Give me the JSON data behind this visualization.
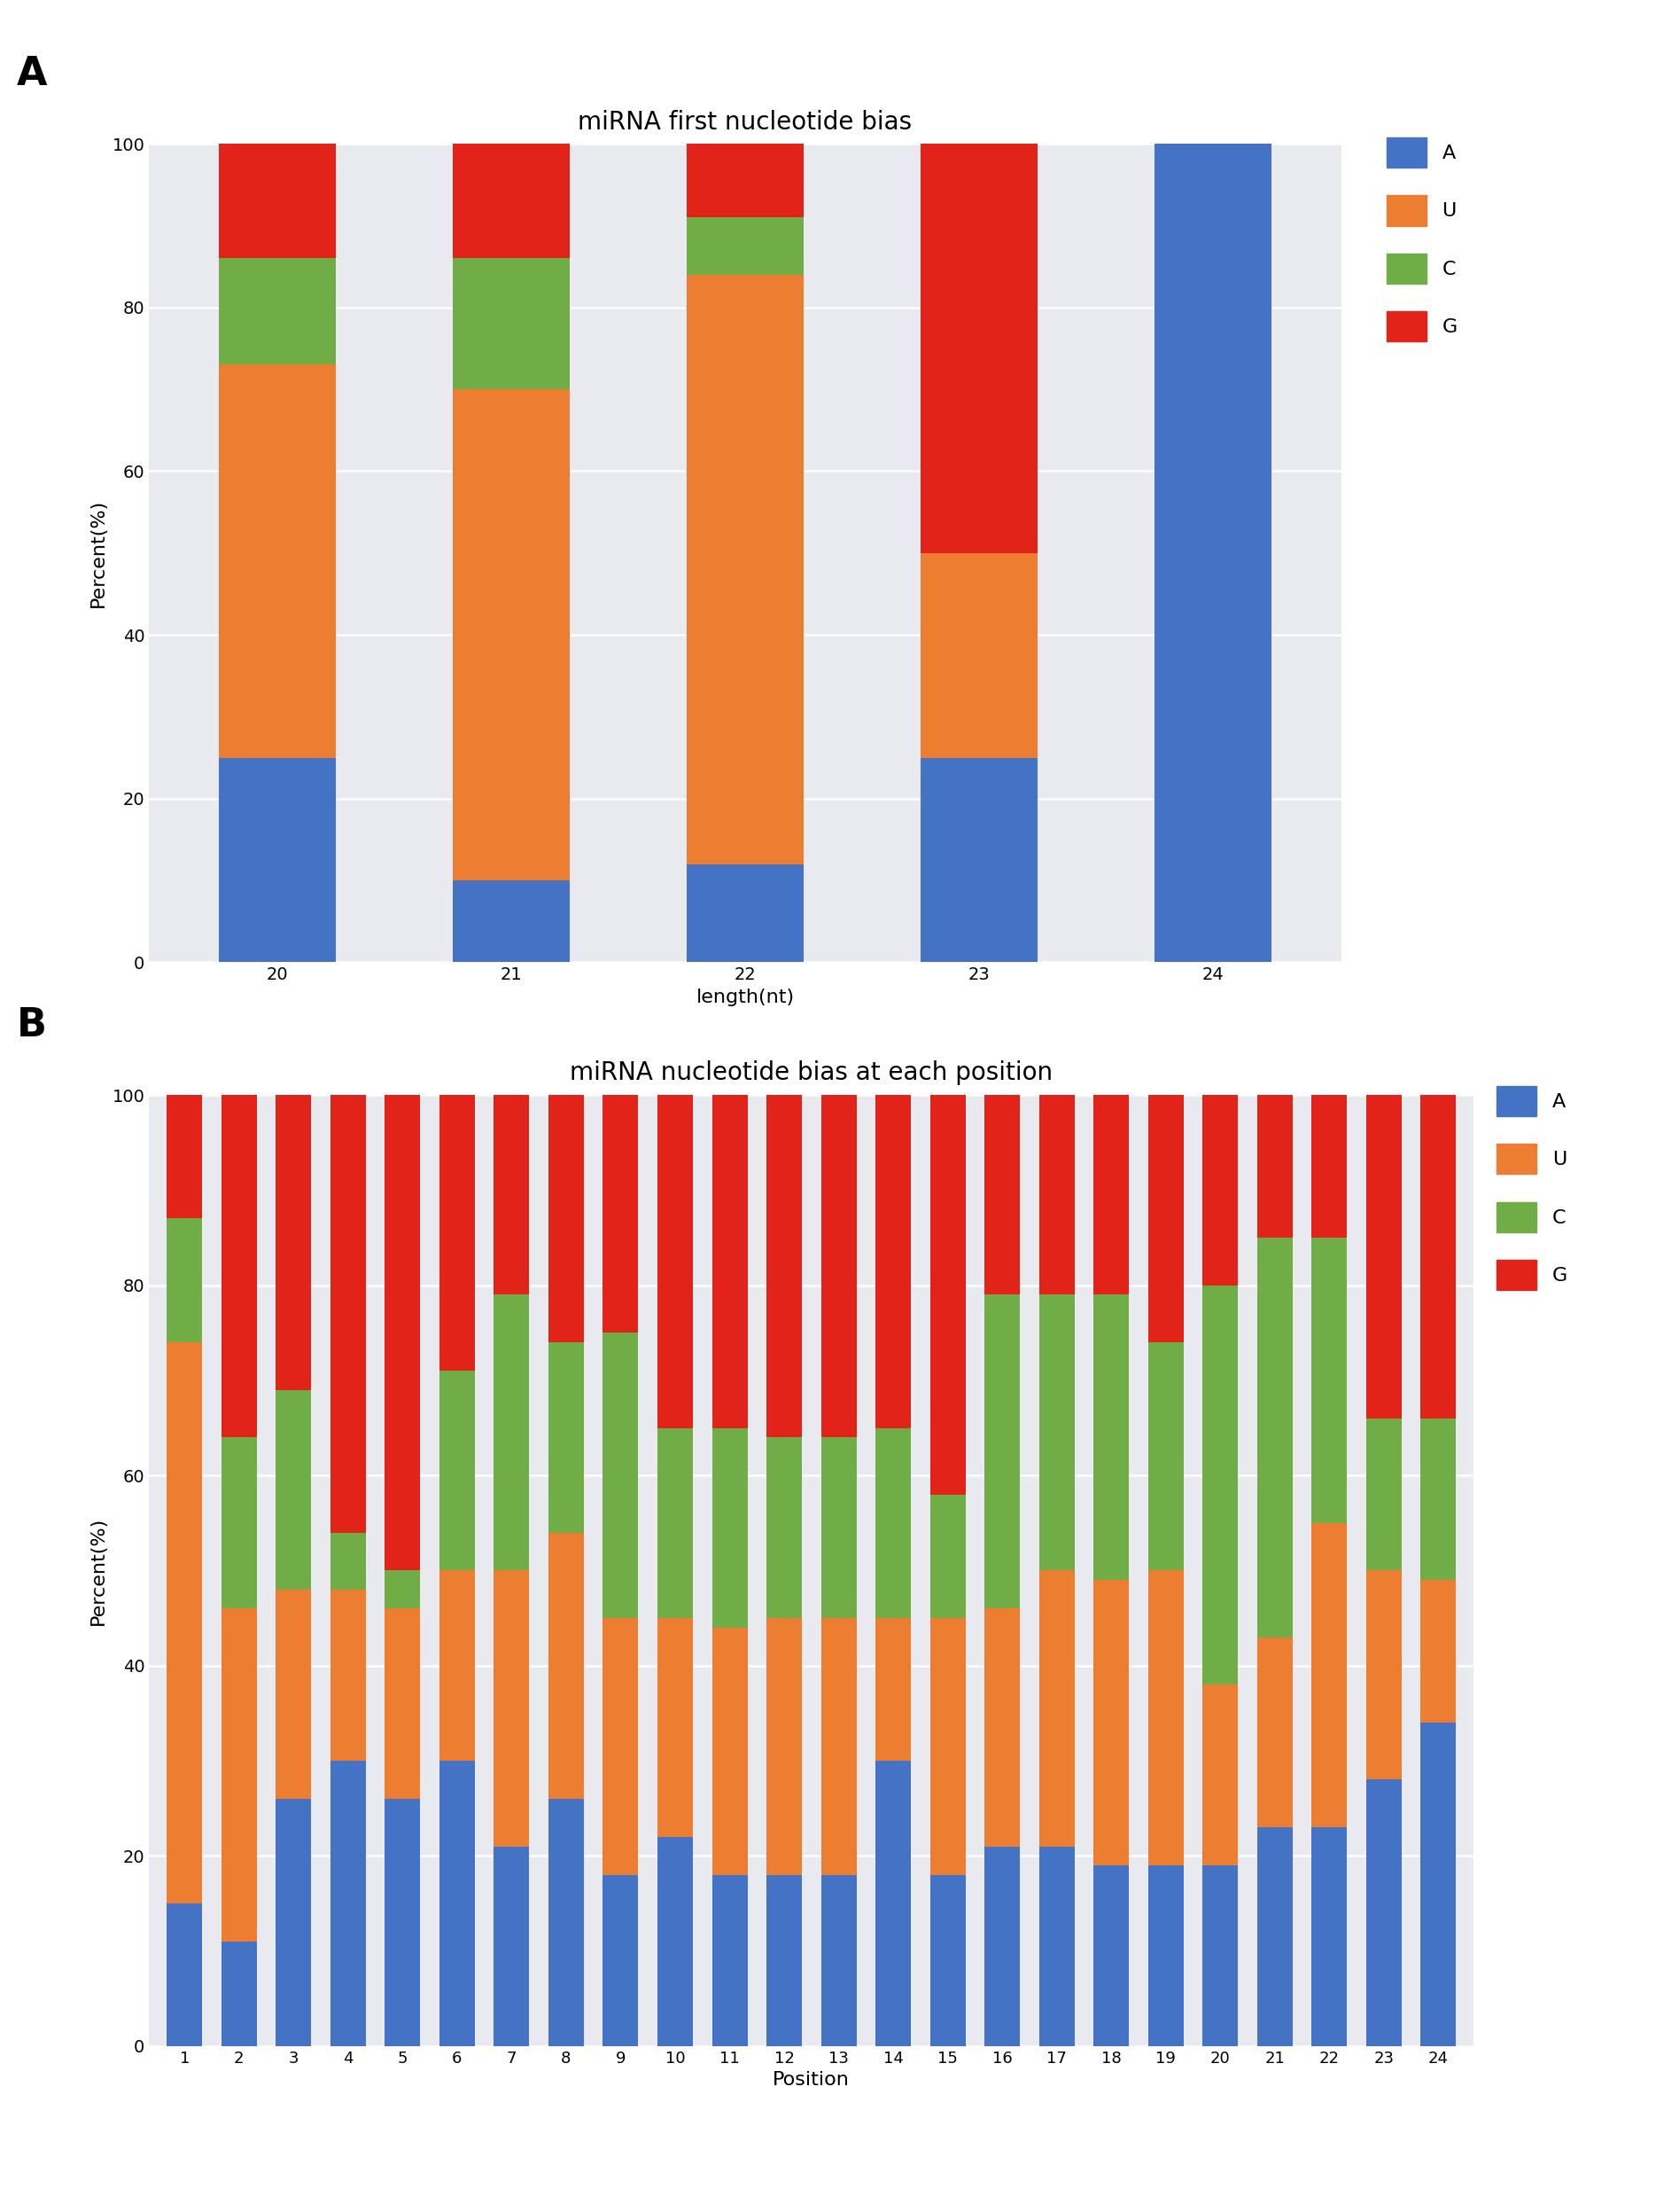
{
  "panel_A": {
    "title": "miRNA first nucleotide bias",
    "xlabel": "length(nt)",
    "ylabel": "Percent(%)",
    "categories": [
      "20",
      "21",
      "22",
      "23",
      "24"
    ],
    "A": [
      25,
      10,
      12,
      25,
      100
    ],
    "U": [
      48,
      60,
      72,
      25,
      0
    ],
    "C": [
      13,
      16,
      7,
      0,
      0
    ],
    "G": [
      14,
      14,
      9,
      50,
      0
    ]
  },
  "panel_B": {
    "title": "miRNA nucleotide bias at each position",
    "xlabel": "Position",
    "ylabel": "Percent(%)",
    "positions": [
      1,
      2,
      3,
      4,
      5,
      6,
      7,
      8,
      9,
      10,
      11,
      12,
      13,
      14,
      15,
      16,
      17,
      18,
      19,
      20,
      21,
      22,
      23,
      24
    ],
    "A": [
      15,
      11,
      26,
      30,
      26,
      30,
      21,
      26,
      18,
      22,
      18,
      18,
      18,
      30,
      18,
      21,
      21,
      19,
      19,
      19,
      23,
      23,
      28,
      34
    ],
    "U": [
      59,
      35,
      22,
      18,
      20,
      20,
      29,
      28,
      27,
      23,
      26,
      27,
      27,
      15,
      27,
      25,
      29,
      30,
      31,
      19,
      20,
      32,
      22,
      15
    ],
    "C": [
      13,
      18,
      21,
      6,
      4,
      21,
      29,
      20,
      30,
      20,
      21,
      19,
      19,
      20,
      13,
      33,
      29,
      30,
      24,
      42,
      42,
      30,
      16,
      17
    ],
    "G": [
      13,
      36,
      31,
      46,
      50,
      29,
      21,
      26,
      25,
      35,
      35,
      36,
      36,
      35,
      42,
      21,
      21,
      21,
      26,
      20,
      15,
      15,
      34,
      34
    ]
  },
  "colors": {
    "A": "#4472C4",
    "U": "#ED7D31",
    "C": "#70AD47",
    "G": "#E2231A"
  },
  "bg_color": "#E8EAF0",
  "panel_label_fontsize": 32,
  "title_fontsize": 20,
  "axis_fontsize": 16,
  "tick_fontsize": 14,
  "legend_fontsize": 16
}
